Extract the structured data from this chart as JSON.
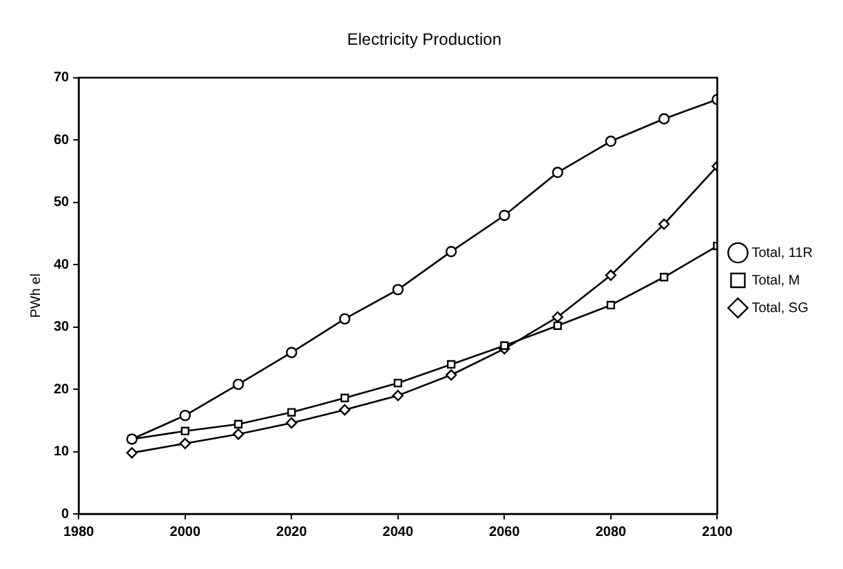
{
  "chart_data": {
    "type": "line",
    "title": "Electricity Production",
    "ylabel": "PWh el",
    "x": [
      1990,
      2000,
      2010,
      2020,
      2030,
      2040,
      2050,
      2060,
      2070,
      2080,
      2090,
      2100
    ],
    "series": [
      {
        "name": "Total, 11R",
        "color": "#000000",
        "marker": "circle",
        "values": [
          12,
          15.8,
          20.8,
          25.9,
          31.3,
          36,
          42.1,
          47.9,
          54.8,
          59.8,
          63.4,
          66.5
        ]
      },
      {
        "name": "Total, M",
        "color": "#000000",
        "marker": "square",
        "values": [
          12,
          13.3,
          14.4,
          16.3,
          18.6,
          21,
          24,
          27,
          30.2,
          33.5,
          38,
          43
        ]
      },
      {
        "name": "Total, SG",
        "color": "#000000",
        "marker": "diamond",
        "values": [
          9.8,
          11.3,
          12.8,
          14.6,
          16.7,
          19,
          22.3,
          26.5,
          31.6,
          38.3,
          46.5,
          55.8
        ]
      }
    ],
    "xlim": [
      1980,
      2100
    ],
    "xticks": [
      1980,
      2000,
      2020,
      2040,
      2060,
      2080,
      2100
    ],
    "ylim": [
      0,
      70
    ],
    "yticks": [
      0,
      10,
      20,
      30,
      40,
      50,
      60,
      70
    ],
    "grid": false,
    "legend": "right",
    "line_style": "solid"
  }
}
